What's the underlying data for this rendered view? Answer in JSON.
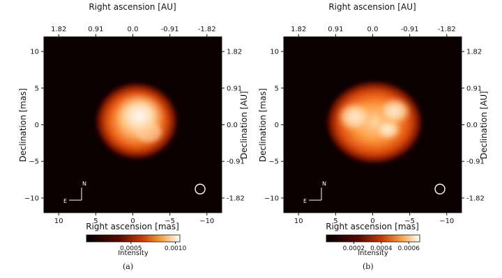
{
  "panels": [
    {
      "id": "a",
      "caption": "(a)",
      "axes": {
        "bottom_label": "Right ascension [mas]",
        "top_label": "Right ascension [AU]",
        "left_label": "Declination [mas]",
        "right_label": "Declination [AU]",
        "bottom_ticks": [
          "10",
          "5",
          "0",
          "−5",
          "−10"
        ],
        "left_ticks": [
          "10",
          "5",
          "0",
          "−5",
          "−10"
        ],
        "top_ticks": [
          "1.82",
          "0.91",
          "0.0",
          "-0.91",
          "-1.82"
        ],
        "right_ticks": [
          "1.82",
          "0.91",
          "0.0",
          "-0.91",
          "-1.82"
        ],
        "xlim": [
          12,
          -12
        ],
        "ylim": [
          -12,
          12
        ]
      },
      "compass": {
        "north": "N",
        "east": "E"
      },
      "beam_symbol": "circle",
      "colorbar": {
        "label": "Intensity",
        "ticks": [
          "0.0005",
          "0.0010"
        ],
        "range": [
          0,
          0.00105
        ],
        "colormap": "gist_heat"
      },
      "image": {
        "shape": "uneven-disk",
        "peak_offset": [
          0.5,
          1.5
        ]
      }
    },
    {
      "id": "b",
      "caption": "(b)",
      "axes": {
        "bottom_label": "Right ascension [mas]",
        "top_label": "Right ascension [AU]",
        "left_label": "Declination [mas]",
        "right_label": "Declination [AU]",
        "bottom_ticks": [
          "10",
          "5",
          "0",
          "−5",
          "−10"
        ],
        "left_ticks": [
          "10",
          "5",
          "0",
          "−5",
          "−10"
        ],
        "top_ticks": [
          "1.82",
          "0.91",
          "0.0",
          "-0.91",
          "-1.82"
        ],
        "right_ticks": [
          "1.82",
          "0.91",
          "0.0",
          "-0.91",
          "-1.82"
        ],
        "xlim": [
          12,
          -12
        ],
        "ylim": [
          -12,
          12
        ]
      },
      "compass": {
        "north": "N",
        "east": "E"
      },
      "beam_symbol": "circle",
      "colorbar": {
        "label": "Intensity",
        "ticks": [
          "0.0002",
          "0.0004",
          "0.0006"
        ],
        "range": [
          0,
          0.00068
        ],
        "colormap": "gist_heat"
      },
      "image": {
        "shape": "flattened-disk",
        "peak_offset": [
          -3,
          -0.5
        ]
      }
    }
  ]
}
